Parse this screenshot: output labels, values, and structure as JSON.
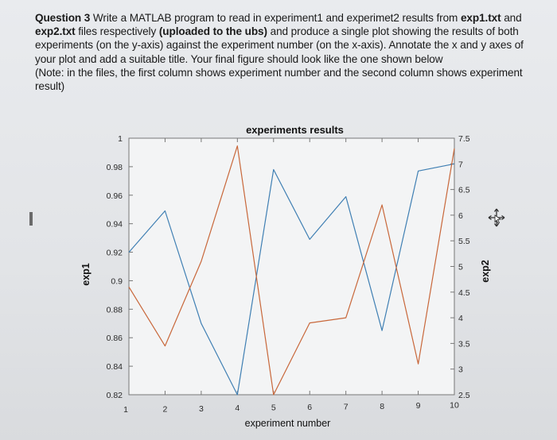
{
  "question": {
    "label": "Question 3",
    "parts": [
      {
        "text": " Write a MATLAB program to read in experiment1 and experimet2 results from ",
        "bold": false
      },
      {
        "text": "exp1.txt",
        "bold": true
      },
      {
        "text": " and ",
        "bold": false
      },
      {
        "text": "exp2.txt",
        "bold": true
      },
      {
        "text": " files respectively ",
        "bold": false
      },
      {
        "text": "(uploaded to the ubs)",
        "bold": true
      },
      {
        "text": " and produce a single plot showing the results of both experiments (on the y-axis) against the experiment number (on the x-axis). Annotate the x and y axes of your plot and add a suitable title. Your final figure should look like the one shown below",
        "bold": false
      }
    ],
    "note": "(Note: in the files, the first column shows experiment number and the second column shows experiment result)"
  },
  "chart_data": {
    "type": "line",
    "title": "experiments results",
    "xlabel": "experiment number",
    "ylabel_left": "exp1",
    "ylabel_right": "exp2",
    "x": [
      1,
      2,
      3,
      4,
      5,
      6,
      7,
      8,
      9,
      10
    ],
    "xlim": [
      1,
      10
    ],
    "ylim_left": [
      0.82,
      1
    ],
    "ylim_right": [
      2.5,
      7.5
    ],
    "xticks": [
      "1",
      "2",
      "3",
      "4",
      "5",
      "6",
      "7",
      "8",
      "9",
      "10"
    ],
    "yticks_left": [
      "0.82",
      "0.84",
      "0.86",
      "0.88",
      "0.9",
      "0.92",
      "0.94",
      "0.96",
      "0.98",
      "1"
    ],
    "yticks_right": [
      "2.5",
      "3",
      "3.5",
      "4",
      "4.5",
      "5",
      "5.5",
      "6",
      "6.5",
      "7",
      "7.5"
    ],
    "grid": false,
    "series": [
      {
        "axis": "left",
        "color": "#3f7fb3",
        "values": [
          0.92,
          0.949,
          0.87,
          0.82,
          0.978,
          0.929,
          0.959,
          0.865,
          0.977,
          0.982
        ]
      },
      {
        "axis": "right",
        "color": "#c8673a",
        "values": [
          4.6,
          3.45,
          5.1,
          7.35,
          2.5,
          3.9,
          4.0,
          6.2,
          3.1,
          7.3
        ]
      }
    ]
  },
  "icons": {
    "cursor": "move-cursor-icon"
  }
}
